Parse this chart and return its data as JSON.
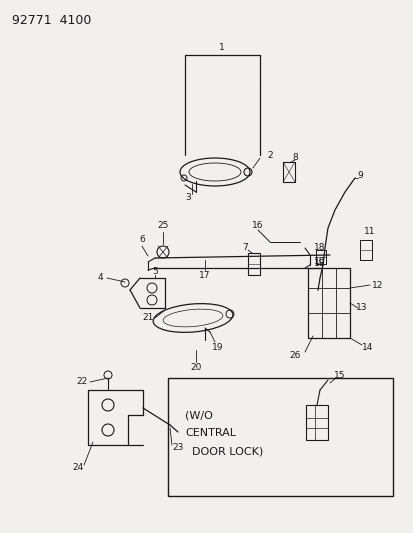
{
  "title": "92771  4100",
  "bg_color": "#f2f0ed",
  "line_color": "#1a1a1a",
  "text_color": "#1a1a1a",
  "figsize": [
    4.14,
    5.33
  ],
  "dpi": 100,
  "box_text_line1": "(W/O",
  "box_text_line2": "CENTRAL",
  "box_text_line3": "  DOOR LOCK)"
}
